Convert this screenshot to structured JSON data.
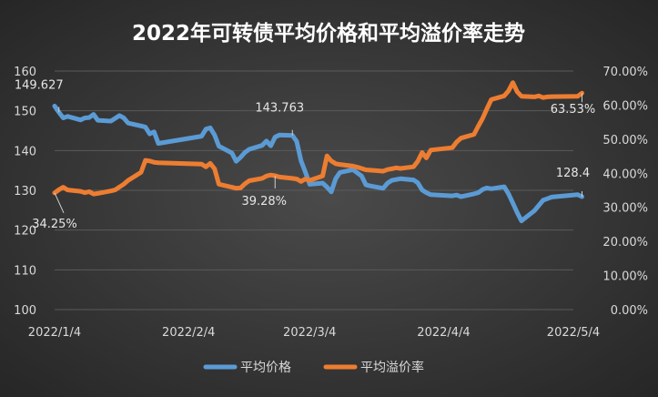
{
  "chart_data": {
    "type": "line",
    "title": "2022年可转债平均价格和平均溢价率走势",
    "x_ticks": [
      "2022/1/4",
      "2022/2/4",
      "2022/3/4",
      "2022/4/4",
      "2022/5/4"
    ],
    "y_left": {
      "min": 100,
      "max": 160,
      "ticks": [
        "100",
        "110",
        "120",
        "130",
        "140",
        "150",
        "160"
      ]
    },
    "y_right": {
      "min": 0,
      "max": 70,
      "ticks": [
        "0.00%",
        "10.00%",
        "20.00%",
        "30.00%",
        "40.00%",
        "50.00%",
        "60.00%",
        "70.00%"
      ]
    },
    "legend_position": "bottom",
    "grid": true,
    "series": [
      {
        "name": "平均价格",
        "axis": "left",
        "color": "#5b9bd5",
        "x": [
          "2022-01-04",
          "2022-01-05",
          "2022-01-06",
          "2022-01-07",
          "2022-01-10",
          "2022-01-11",
          "2022-01-12",
          "2022-01-13",
          "2022-01-14",
          "2022-01-17",
          "2022-01-18",
          "2022-01-19",
          "2022-01-20",
          "2022-01-21",
          "2022-01-24",
          "2022-01-25",
          "2022-01-26",
          "2022-01-27",
          "2022-01-28",
          "2022-02-07",
          "2022-02-08",
          "2022-02-09",
          "2022-02-10",
          "2022-02-11",
          "2022-02-14",
          "2022-02-15",
          "2022-02-16",
          "2022-02-17",
          "2022-02-18",
          "2022-02-21",
          "2022-02-22",
          "2022-02-23",
          "2022-02-24",
          "2022-02-25",
          "2022-02-28",
          "2022-03-01",
          "2022-03-02",
          "2022-03-03",
          "2022-03-04",
          "2022-03-07",
          "2022-03-08",
          "2022-03-09",
          "2022-03-10",
          "2022-03-11",
          "2022-03-14",
          "2022-03-15",
          "2022-03-16",
          "2022-03-17",
          "2022-03-18",
          "2022-03-21",
          "2022-03-22",
          "2022-03-23",
          "2022-03-24",
          "2022-03-25",
          "2022-03-28",
          "2022-03-29",
          "2022-03-30",
          "2022-03-31",
          "2022-04-01",
          "2022-04-06",
          "2022-04-07",
          "2022-04-08",
          "2022-04-11",
          "2022-04-12",
          "2022-04-13",
          "2022-04-14",
          "2022-04-15",
          "2022-04-18",
          "2022-04-19",
          "2022-04-20",
          "2022-04-21",
          "2022-04-22",
          "2022-04-25",
          "2022-04-26",
          "2022-04-27",
          "2022-04-28",
          "2022-04-29",
          "2022-05-05",
          "2022-05-06"
        ],
        "values": [
          151.2,
          149.6,
          148.2,
          148.6,
          147.7,
          148.2,
          148.3,
          149.1,
          147.6,
          147.4,
          148.1,
          148.8,
          148.2,
          146.9,
          146.2,
          145.9,
          144.2,
          144.7,
          141.8,
          143.6,
          145.4,
          145.7,
          143.9,
          141.1,
          139.4,
          137.3,
          138.3,
          139.5,
          140.3,
          141.3,
          142.4,
          141.2,
          143.4,
          143.9,
          143.8,
          142.3,
          137.4,
          134.6,
          131.5,
          131.8,
          130.8,
          129.6,
          132.9,
          134.5,
          135.2,
          134.4,
          133.6,
          131.4,
          131.1,
          130.5,
          131.8,
          132.5,
          132.7,
          132.9,
          132.6,
          131.9,
          130.1,
          129.4,
          128.9,
          128.6,
          128.8,
          128.4,
          129.1,
          129.4,
          130.2,
          130.6,
          130.4,
          130.9,
          129.1,
          126.8,
          124.4,
          122.3,
          124.9,
          126.2,
          127.5,
          127.9,
          128.3,
          128.9,
          128.4
        ]
      },
      {
        "name": "平均溢价率",
        "axis": "right",
        "color": "#ed7d31",
        "x": [
          "2022-01-04",
          "2022-01-05",
          "2022-01-06",
          "2022-01-07",
          "2022-01-10",
          "2022-01-11",
          "2022-01-12",
          "2022-01-13",
          "2022-01-14",
          "2022-01-17",
          "2022-01-18",
          "2022-01-19",
          "2022-01-20",
          "2022-01-21",
          "2022-01-24",
          "2022-01-25",
          "2022-01-26",
          "2022-01-27",
          "2022-01-28",
          "2022-02-07",
          "2022-02-08",
          "2022-02-09",
          "2022-02-10",
          "2022-02-11",
          "2022-02-14",
          "2022-02-15",
          "2022-02-16",
          "2022-02-17",
          "2022-02-18",
          "2022-02-21",
          "2022-02-22",
          "2022-02-23",
          "2022-02-24",
          "2022-02-25",
          "2022-02-28",
          "2022-03-01",
          "2022-03-02",
          "2022-03-03",
          "2022-03-04",
          "2022-03-07",
          "2022-03-08",
          "2022-03-09",
          "2022-03-10",
          "2022-03-11",
          "2022-03-14",
          "2022-03-15",
          "2022-03-16",
          "2022-03-17",
          "2022-03-18",
          "2022-03-21",
          "2022-03-22",
          "2022-03-23",
          "2022-03-24",
          "2022-03-25",
          "2022-03-28",
          "2022-03-29",
          "2022-03-30",
          "2022-03-31",
          "2022-04-01",
          "2022-04-06",
          "2022-04-07",
          "2022-04-08",
          "2022-04-11",
          "2022-04-12",
          "2022-04-13",
          "2022-04-14",
          "2022-04-15",
          "2022-04-18",
          "2022-04-19",
          "2022-04-20",
          "2022-04-21",
          "2022-04-22",
          "2022-04-25",
          "2022-04-26",
          "2022-04-27",
          "2022-04-28",
          "2022-04-29",
          "2022-05-05",
          "2022-05-06"
        ],
        "values": [
          34.25,
          35.2,
          35.9,
          35.1,
          34.7,
          34.3,
          34.6,
          33.9,
          34.1,
          34.8,
          35.1,
          36.0,
          36.8,
          37.9,
          40.3,
          43.8,
          43.6,
          43.2,
          43.1,
          42.7,
          41.9,
          42.9,
          41.3,
          36.8,
          35.9,
          35.6,
          35.7,
          36.9,
          37.8,
          38.5,
          39.2,
          39.5,
          39.28,
          38.9,
          38.5,
          38.3,
          37.6,
          38.3,
          37.9,
          39.2,
          45.1,
          43.6,
          42.8,
          42.6,
          42.1,
          41.8,
          41.4,
          41.0,
          40.9,
          40.6,
          41.1,
          41.3,
          41.6,
          41.4,
          41.9,
          43.5,
          46.1,
          44.5,
          46.8,
          47.5,
          49.2,
          50.3,
          51.4,
          53.8,
          56.1,
          58.9,
          61.6,
          62.7,
          64.2,
          66.6,
          63.9,
          62.6,
          62.4,
          62.7,
          62.2,
          62.4,
          62.5,
          62.6,
          63.53
        ]
      }
    ],
    "data_labels": [
      {
        "series": "平均价格",
        "x": "2022-01-05",
        "text": "149.627"
      },
      {
        "series": "平均价格",
        "x": "2022-02-28",
        "text": "143.763"
      },
      {
        "series": "平均价格",
        "x": "2022-05-06",
        "text": "128.4"
      },
      {
        "series": "平均溢价率",
        "x": "2022-01-04",
        "text": "34.25%"
      },
      {
        "series": "平均溢价率",
        "x": "2022-02-24",
        "text": "39.28%"
      },
      {
        "series": "平均溢价率",
        "x": "2022-05-06",
        "text": "63.53%"
      }
    ]
  }
}
